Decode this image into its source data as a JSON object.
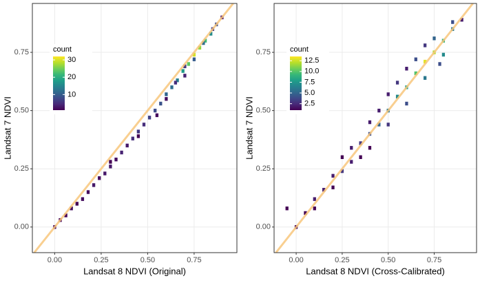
{
  "chart_data": [
    {
      "type": "bin2d",
      "x_label": "Landsat 8 NDVI (Original)",
      "y_label": "Landsat 7 NDVI",
      "legend_title": "count",
      "xlim": [
        -0.12,
        0.98
      ],
      "ylim": [
        -0.11,
        0.96
      ],
      "xticks": [
        {
          "value": 0,
          "label": "0.00"
        },
        {
          "value": 0.25,
          "label": "0.25"
        },
        {
          "value": 0.5,
          "label": "0.50"
        },
        {
          "value": 0.75,
          "label": "0.75"
        }
      ],
      "yticks": [
        {
          "value": 0,
          "label": "0.00"
        },
        {
          "value": 0.25,
          "label": "0.25"
        },
        {
          "value": 0.5,
          "label": "0.50"
        },
        {
          "value": 0.75,
          "label": "0.75"
        }
      ],
      "clim": [
        1,
        32
      ],
      "cticks": [
        10,
        20,
        30
      ],
      "binwidth": 0.016,
      "grid": true,
      "reference_line_color": "#f8c77c",
      "x": [
        0.0,
        0.03,
        0.06,
        0.09,
        0.12,
        0.15,
        0.18,
        0.21,
        0.24,
        0.27,
        0.3,
        0.33,
        0.36,
        0.39,
        0.42,
        0.45,
        0.48,
        0.51,
        0.54,
        0.57,
        0.6,
        0.63,
        0.66,
        0.69,
        0.72,
        0.75,
        0.78,
        0.81,
        0.84,
        0.87,
        0.9,
        0.3,
        0.45,
        0.6,
        0.7,
        0.75,
        0.8,
        0.7,
        0.85,
        0.55,
        0.65
      ],
      "y": [
        0.0,
        0.03,
        0.05,
        0.08,
        0.1,
        0.12,
        0.15,
        0.18,
        0.21,
        0.23,
        0.26,
        0.29,
        0.32,
        0.35,
        0.38,
        0.41,
        0.44,
        0.47,
        0.5,
        0.53,
        0.57,
        0.6,
        0.63,
        0.67,
        0.7,
        0.74,
        0.77,
        0.8,
        0.83,
        0.87,
        0.9,
        0.28,
        0.39,
        0.55,
        0.69,
        0.72,
        0.79,
        0.65,
        0.85,
        0.48,
        0.62
      ],
      "values": [
        1,
        1,
        1,
        2,
        1,
        2,
        2,
        3,
        2,
        3,
        3,
        2,
        4,
        3,
        5,
        6,
        5,
        7,
        8,
        9,
        11,
        12,
        14,
        18,
        24,
        30,
        27,
        22,
        16,
        8,
        2,
        1,
        1,
        2,
        6,
        10,
        12,
        4,
        6,
        2,
        5
      ]
    },
    {
      "type": "bin2d",
      "x_label": "Landsat 8 NDVI (Cross-Calibrated)",
      "y_label": "Landsat 7 NDVI",
      "legend_title": "count",
      "xlim": [
        -0.12,
        0.98
      ],
      "ylim": [
        -0.11,
        0.96
      ],
      "xticks": [
        {
          "value": 0,
          "label": "0.00"
        },
        {
          "value": 0.25,
          "label": "0.25"
        },
        {
          "value": 0.5,
          "label": "0.50"
        },
        {
          "value": 0.75,
          "label": "0.75"
        }
      ],
      "yticks": [
        {
          "value": 0,
          "label": "0.00"
        },
        {
          "value": 0.25,
          "label": "0.25"
        },
        {
          "value": 0.5,
          "label": "0.50"
        },
        {
          "value": 0.75,
          "label": "0.75"
        }
      ],
      "clim": [
        1,
        13.5
      ],
      "cticks": [
        2.5,
        {
          "value": 5,
          "label": "5.0"
        },
        7.5,
        {
          "value": 10,
          "label": "10.0"
        },
        12.5
      ],
      "binwidth": 0.016,
      "grid": true,
      "reference_line_color": "#f8c77c",
      "x": [
        -0.05,
        0.0,
        0.05,
        0.1,
        0.1,
        0.15,
        0.2,
        0.2,
        0.25,
        0.25,
        0.3,
        0.3,
        0.35,
        0.35,
        0.4,
        0.4,
        0.45,
        0.45,
        0.5,
        0.5,
        0.55,
        0.55,
        0.6,
        0.6,
        0.65,
        0.65,
        0.7,
        0.7,
        0.75,
        0.75,
        0.8,
        0.8,
        0.85,
        0.85,
        0.9,
        0.6,
        0.5,
        0.4,
        0.7,
        0.78
      ],
      "y": [
        0.08,
        0.0,
        0.06,
        0.12,
        0.08,
        0.16,
        0.22,
        0.17,
        0.24,
        0.3,
        0.28,
        0.34,
        0.36,
        0.3,
        0.4,
        0.45,
        0.44,
        0.5,
        0.5,
        0.44,
        0.56,
        0.62,
        0.6,
        0.53,
        0.66,
        0.72,
        0.71,
        0.64,
        0.75,
        0.81,
        0.8,
        0.74,
        0.85,
        0.88,
        0.89,
        0.68,
        0.57,
        0.34,
        0.78,
        0.7
      ],
      "values": [
        1,
        1,
        1,
        2,
        1,
        2,
        2,
        1,
        3,
        1,
        2,
        2,
        3,
        1,
        4,
        2,
        5,
        2,
        6,
        3,
        7,
        3,
        8,
        4,
        10,
        4,
        13,
        6,
        12,
        5,
        9,
        7,
        6,
        4,
        2,
        2,
        2,
        1,
        3,
        4
      ]
    }
  ]
}
